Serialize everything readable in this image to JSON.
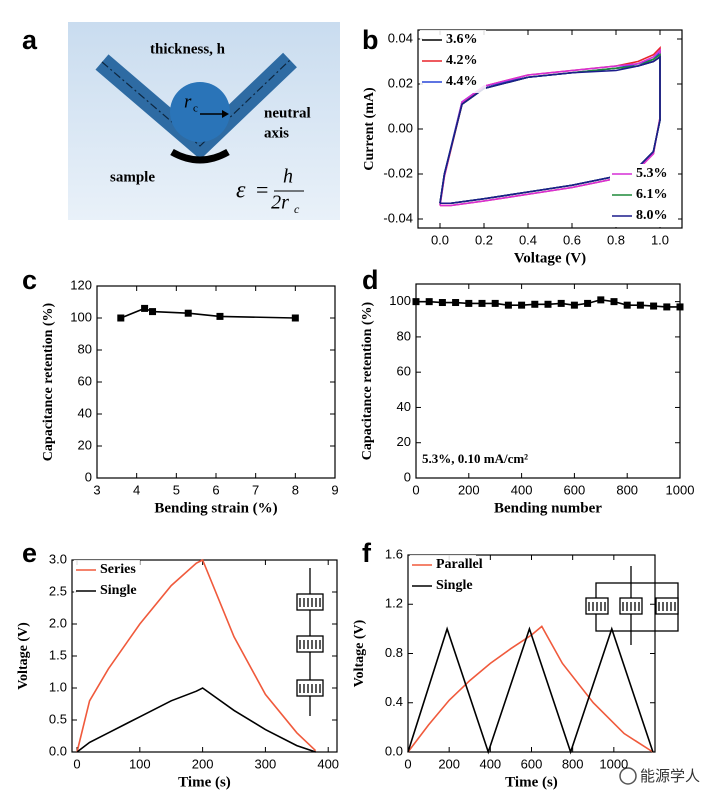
{
  "diagram": {
    "label": "a",
    "thickness": "thickness, h",
    "neutral": "neutral",
    "axis": "axis",
    "sample": "sample",
    "radius_symbol": "r",
    "radius_subscript": "c",
    "formula_lhs": "ε",
    "formula_equals": "=",
    "formula_numerator": "h",
    "formula_denominator": "2r",
    "formula_subscript": "c"
  },
  "watermark": "能源学人",
  "chart_data": [
    {
      "type": "line",
      "label": "b",
      "xlabel": "Voltage (V)",
      "ylabel": "Current (mA)",
      "xlim": [
        -0.1,
        1.1
      ],
      "ylim": [
        -0.044,
        0.044
      ],
      "xticks": [
        {
          "value": 0,
          "label": "0.0"
        },
        0.2,
        0.4,
        0.6,
        0.8,
        {
          "value": 1,
          "label": "1.0"
        }
      ],
      "yticks": [
        -0.04,
        -0.02,
        {
          "value": 0,
          "label": "0.00"
        },
        0.02,
        0.04
      ],
      "x": [
        0,
        0.02,
        0.1,
        0.2,
        0.4,
        0.6,
        0.8,
        0.9,
        0.97,
        1.0,
        1.0,
        0.97,
        0.9,
        0.8,
        0.6,
        0.4,
        0.2,
        0.05,
        0
      ],
      "series": [
        {
          "name": "3.6%",
          "color": "#000000",
          "legend": "upper left",
          "values": [
            -0.033,
            -0.02,
            0.011,
            0.018,
            0.023,
            0.025,
            0.027,
            0.028,
            0.03,
            0.032,
            0.004,
            -0.01,
            -0.017,
            -0.021,
            -0.025,
            -0.028,
            -0.031,
            -0.033,
            -0.033
          ]
        },
        {
          "name": "4.2%",
          "color": "#e8242a",
          "legend": "upper left",
          "values": [
            -0.034,
            -0.021,
            0.011,
            0.019,
            0.024,
            0.026,
            0.028,
            0.03,
            0.033,
            0.036,
            0.005,
            -0.011,
            -0.018,
            -0.022,
            -0.026,
            -0.029,
            -0.032,
            -0.034,
            -0.034
          ]
        },
        {
          "name": "4.4%",
          "color": "#2946d8",
          "legend": "upper left",
          "values": [
            -0.033,
            -0.02,
            0.012,
            0.019,
            0.023,
            0.025,
            0.027,
            0.029,
            0.031,
            0.034,
            0.004,
            -0.01,
            -0.017,
            -0.021,
            -0.025,
            -0.028,
            -0.031,
            -0.033,
            -0.033
          ]
        },
        {
          "name": "5.3%",
          "color": "#d62fd6",
          "legend": "lower right",
          "values": [
            -0.034,
            -0.021,
            0.012,
            0.019,
            0.024,
            0.026,
            0.028,
            0.029,
            0.032,
            0.035,
            0.005,
            -0.011,
            -0.018,
            -0.022,
            -0.026,
            -0.029,
            -0.032,
            -0.034,
            -0.034
          ]
        },
        {
          "name": "6.1%",
          "color": "#1f8a3a",
          "legend": "lower right",
          "values": [
            -0.033,
            -0.02,
            0.011,
            0.018,
            0.023,
            0.025,
            0.027,
            0.028,
            0.031,
            0.033,
            0.004,
            -0.01,
            -0.017,
            -0.021,
            -0.025,
            -0.028,
            -0.031,
            -0.033,
            -0.033
          ]
        },
        {
          "name": "8.0%",
          "color": "#1c1c8c",
          "legend": "lower right",
          "values": [
            -0.033,
            -0.02,
            0.011,
            0.018,
            0.023,
            0.025,
            0.026,
            0.028,
            0.03,
            0.032,
            0.004,
            -0.01,
            -0.017,
            -0.021,
            -0.025,
            -0.028,
            -0.031,
            -0.033,
            -0.033
          ]
        }
      ]
    },
    {
      "type": "line",
      "label": "c",
      "xlabel": "Bending strain (%)",
      "ylabel": "Capacitance retention (%)",
      "xlim": [
        3,
        9
      ],
      "ylim": [
        0,
        120
      ],
      "xticks": [
        3,
        4,
        5,
        6,
        7,
        8,
        9
      ],
      "yticks": [
        0,
        20,
        40,
        60,
        80,
        100,
        120
      ],
      "marker": "square",
      "series": [
        {
          "color": "#000000",
          "x": [
            3.6,
            4.2,
            4.4,
            5.3,
            6.1,
            8.0
          ],
          "values": [
            100,
            106,
            104,
            103,
            101,
            100
          ]
        }
      ]
    },
    {
      "type": "line",
      "label": "d",
      "xlabel": "Bending number",
      "ylabel": "Capacitance retention (%)",
      "xlim": [
        0,
        1000
      ],
      "ylim": [
        0,
        110
      ],
      "xticks": [
        0,
        200,
        400,
        600,
        800,
        1000
      ],
      "yticks": [
        0,
        20,
        40,
        60,
        80,
        100
      ],
      "marker": "square",
      "annotation": "5.3%, 0.10 mA/cm²",
      "series": [
        {
          "color": "#000000",
          "x": [
            0,
            50,
            100,
            150,
            200,
            250,
            300,
            350,
            400,
            450,
            500,
            550,
            600,
            650,
            700,
            750,
            800,
            850,
            900,
            950,
            1000
          ],
          "values": [
            100,
            100,
            99.5,
            99.5,
            99,
            99,
            99,
            98,
            98,
            98.5,
            98.5,
            99,
            98,
            99,
            101,
            100,
            98,
            98,
            97.5,
            97,
            97
          ]
        }
      ]
    },
    {
      "type": "line",
      "label": "e",
      "xlabel": "Time (s)",
      "ylabel": "Voltage (V)",
      "legend": "upper left",
      "xlim": [
        -8,
        414
      ],
      "ylim": [
        0,
        3
      ],
      "xticks": [
        0,
        100,
        200,
        300,
        400
      ],
      "yticks": [
        {
          "value": 0,
          "label": "0.0"
        },
        0.5,
        {
          "value": 1,
          "label": "1.0"
        },
        1.5,
        {
          "value": 2,
          "label": "2.0"
        },
        2.5,
        {
          "value": 3,
          "label": "3.0"
        }
      ],
      "x": [
        0,
        20,
        50,
        100,
        150,
        190,
        200,
        250,
        300,
        350,
        380
      ],
      "series": [
        {
          "name": "Series",
          "color": "#f05a3c",
          "values": [
            0,
            0.8,
            1.3,
            2.0,
            2.6,
            2.95,
            3.0,
            1.8,
            0.9,
            0.3,
            0.02
          ]
        },
        {
          "name": "Single",
          "color": "#000000",
          "values": [
            0,
            0.15,
            0.3,
            0.55,
            0.8,
            0.95,
            1.0,
            0.65,
            0.35,
            0.1,
            0
          ]
        }
      ]
    },
    {
      "type": "line",
      "label": "f",
      "xlabel": "Time (s)",
      "ylabel": "Voltage (V)",
      "legend": "upper left",
      "xlim": [
        0,
        1200
      ],
      "ylim": [
        0,
        1.6
      ],
      "xticks": [
        0,
        200,
        400,
        600,
        800,
        1000
      ],
      "yticks": [
        {
          "value": 0,
          "label": "0.0"
        },
        0.4,
        0.8,
        1.2,
        1.6
      ],
      "series": [
        {
          "name": "Parallel",
          "color": "#f05a3c",
          "x": [
            0,
            100,
            200,
            300,
            400,
            500,
            600,
            650,
            750,
            900,
            1050,
            1190
          ],
          "values": [
            0,
            0.22,
            0.42,
            0.58,
            0.72,
            0.84,
            0.95,
            1.02,
            0.72,
            0.4,
            0.15,
            0
          ]
        },
        {
          "name": "Single",
          "color": "#000000",
          "x": [
            0,
            190,
            390,
            590,
            790,
            990,
            1190
          ],
          "values": [
            0,
            1.0,
            0,
            1.0,
            0,
            1.0,
            0
          ]
        }
      ]
    }
  ]
}
